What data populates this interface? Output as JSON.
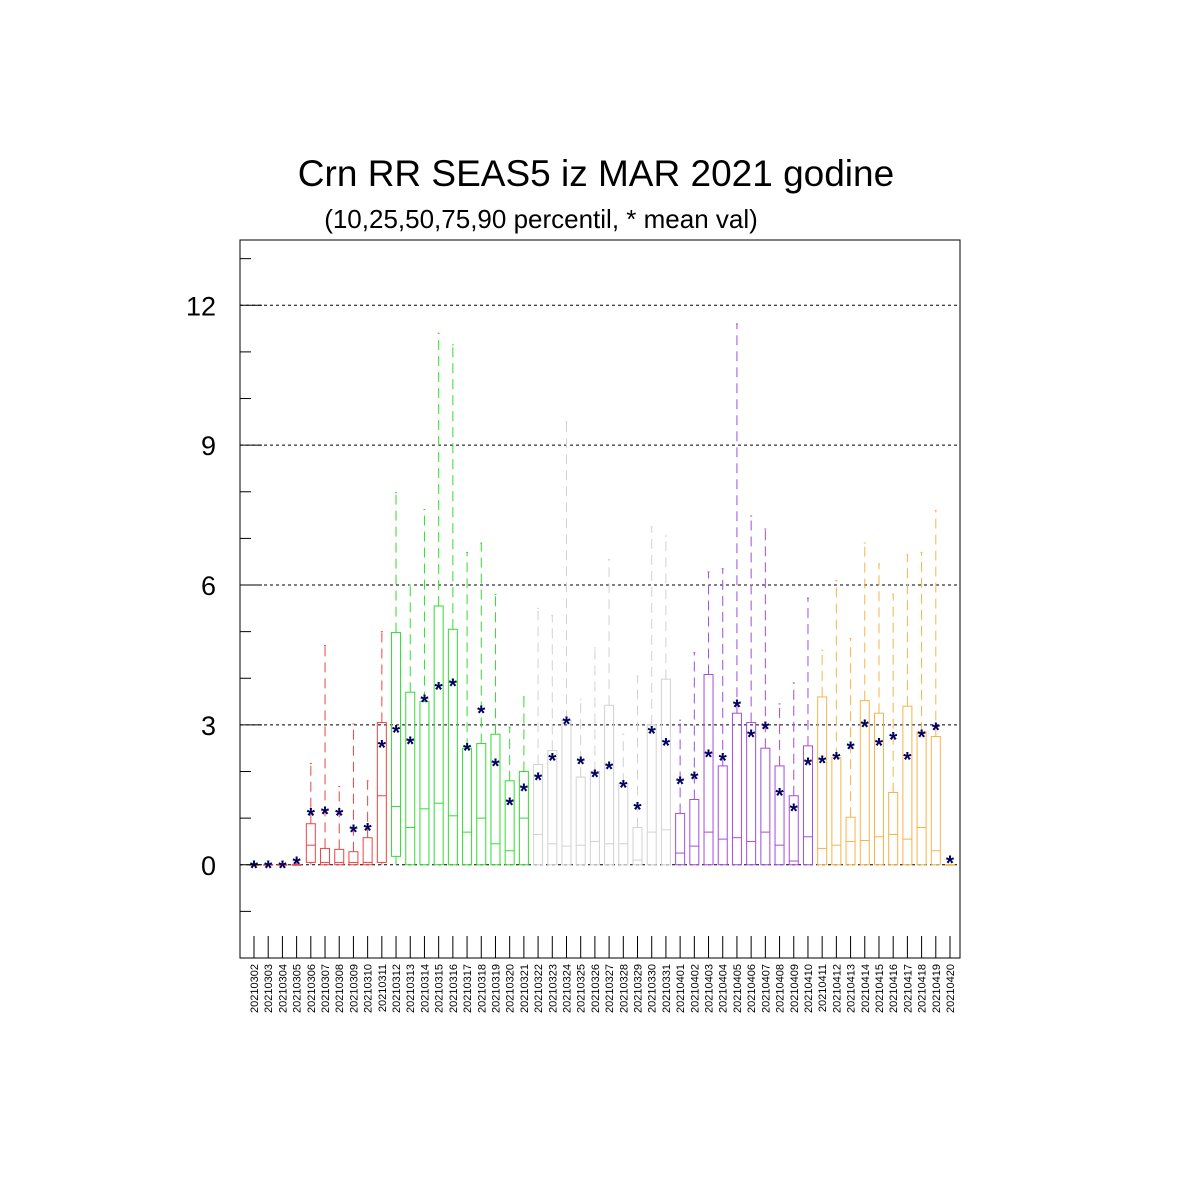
{
  "chart_data": {
    "type": "box",
    "title": "Crn RR SEAS5 iz MAR 2021 godine",
    "subtitle": "(10,25,50,75,90 percentil, * mean val)",
    "xlabel": "",
    "ylabel": "",
    "ylim": [
      -2,
      13.4
    ],
    "yticks": [
      0,
      3,
      6,
      9,
      12
    ],
    "grid": "horizontal dashed at major ticks",
    "mean_marker": "*",
    "colors": {
      "red": "#ee4444",
      "green": "#33dd33",
      "gray": "#d2d2d2",
      "purple": "#a64cdd",
      "orange": "#f8b347",
      "mean": "#000060"
    },
    "categories": [
      "20210302",
      "20210303",
      "20210304",
      "20210305",
      "20210306",
      "20210307",
      "20210308",
      "20210309",
      "20210310",
      "20210311",
      "20210312",
      "20210313",
      "20210314",
      "20210315",
      "20210316",
      "20210317",
      "20210318",
      "20210319",
      "20210320",
      "20210321",
      "20210322",
      "20210323",
      "20210324",
      "20210325",
      "20210326",
      "20210327",
      "20210328",
      "20210329",
      "20210330",
      "20210331",
      "20210401",
      "20210402",
      "20210403",
      "20210404",
      "20210405",
      "20210406",
      "20210407",
      "20210408",
      "20210409",
      "20210410",
      "20210411",
      "20210412",
      "20210413",
      "20210414",
      "20210415",
      "20210416",
      "20210417",
      "20210418",
      "20210419",
      "20210420"
    ],
    "boxes": [
      {
        "color": "red",
        "p10": 0,
        "p25": 0,
        "p50": 0,
        "p75": 0,
        "p90": 0,
        "mean": 0
      },
      {
        "color": "red",
        "p10": 0,
        "p25": 0,
        "p50": 0,
        "p75": 0,
        "p90": 0,
        "mean": 0
      },
      {
        "color": "red",
        "p10": 0,
        "p25": 0,
        "p50": 0,
        "p75": 0,
        "p90": 0,
        "mean": 0
      },
      {
        "color": "red",
        "p10": 0,
        "p25": 0,
        "p50": 0,
        "p75": 0,
        "p90": 0.1,
        "mean": 0.08
      },
      {
        "color": "red",
        "p10": 0,
        "p25": 0.05,
        "p50": 0.42,
        "p75": 0.88,
        "p90": 2.17,
        "mean": 1.12
      },
      {
        "color": "red",
        "p10": 0,
        "p25": 0,
        "p50": 0.05,
        "p75": 0.35,
        "p90": 4.7,
        "mean": 1.15
      },
      {
        "color": "red",
        "p10": 0,
        "p25": 0,
        "p50": 0.05,
        "p75": 0.33,
        "p90": 1.68,
        "mean": 1.12
      },
      {
        "color": "red",
        "p10": 0,
        "p25": 0,
        "p50": 0.05,
        "p75": 0.28,
        "p90": 3.02,
        "mean": 0.77
      },
      {
        "color": "red",
        "p10": 0,
        "p25": 0,
        "p50": 0.05,
        "p75": 0.58,
        "p90": 1.8,
        "mean": 0.8
      },
      {
        "color": "red",
        "p10": 0,
        "p25": 0.05,
        "p50": 1.48,
        "p75": 3.05,
        "p90": 5.0,
        "mean": 2.58
      },
      {
        "color": "green",
        "p10": 0,
        "p25": 0.18,
        "p50": 1.25,
        "p75": 4.98,
        "p90": 7.98,
        "mean": 2.9
      },
      {
        "color": "green",
        "p10": 0,
        "p25": 0,
        "p50": 0.8,
        "p75": 3.7,
        "p90": 6.0,
        "mean": 2.65
      },
      {
        "color": "green",
        "p10": 0,
        "p25": 0,
        "p50": 1.2,
        "p75": 3.5,
        "p90": 7.62,
        "mean": 3.55
      },
      {
        "color": "green",
        "p10": 0,
        "p25": 0,
        "p50": 1.32,
        "p75": 5.55,
        "p90": 11.4,
        "mean": 3.82
      },
      {
        "color": "green",
        "p10": 0,
        "p25": 0,
        "p50": 1.05,
        "p75": 5.05,
        "p90": 11.15,
        "mean": 3.9
      },
      {
        "color": "green",
        "p10": 0,
        "p25": 0,
        "p50": 0.7,
        "p75": 2.5,
        "p90": 6.7,
        "mean": 2.52
      },
      {
        "color": "green",
        "p10": 0,
        "p25": 0,
        "p50": 1.0,
        "p75": 2.6,
        "p90": 6.9,
        "mean": 3.32
      },
      {
        "color": "green",
        "p10": 0,
        "p25": 0,
        "p50": 0.45,
        "p75": 2.8,
        "p90": 5.8,
        "mean": 2.18
      },
      {
        "color": "green",
        "p10": 0,
        "p25": 0,
        "p50": 0.3,
        "p75": 1.8,
        "p90": 2.95,
        "mean": 1.35
      },
      {
        "color": "green",
        "p10": 0,
        "p25": 0,
        "p50": 1.0,
        "p75": 2.0,
        "p90": 3.6,
        "mean": 1.65
      },
      {
        "color": "gray",
        "p10": 0,
        "p25": 0,
        "p50": 0.65,
        "p75": 2.15,
        "p90": 5.5,
        "mean": 1.88
      },
      {
        "color": "gray",
        "p10": 0,
        "p25": 0,
        "p50": 0.45,
        "p75": 2.45,
        "p90": 5.35,
        "mean": 2.3
      },
      {
        "color": "gray",
        "p10": 0,
        "p25": 0,
        "p50": 0.4,
        "p75": 3.1,
        "p90": 9.5,
        "mean": 3.08
      },
      {
        "color": "gray",
        "p10": 0,
        "p25": 0,
        "p50": 0.42,
        "p75": 1.88,
        "p90": 3.55,
        "mean": 2.22
      },
      {
        "color": "gray",
        "p10": 0,
        "p25": 0,
        "p50": 0.5,
        "p75": 2.0,
        "p90": 4.65,
        "mean": 1.95
      },
      {
        "color": "gray",
        "p10": 0,
        "p25": 0,
        "p50": 0.45,
        "p75": 3.42,
        "p90": 6.55,
        "mean": 2.12
      },
      {
        "color": "gray",
        "p10": 0,
        "p25": 0,
        "p50": 0.45,
        "p75": 1.75,
        "p90": 2.8,
        "mean": 1.72
      },
      {
        "color": "gray",
        "p10": 0,
        "p25": 0,
        "p50": 0.1,
        "p75": 0.8,
        "p90": 4.05,
        "mean": 1.25
      },
      {
        "color": "gray",
        "p10": 0,
        "p25": 0,
        "p50": 0.7,
        "p75": 3.0,
        "p90": 7.25,
        "mean": 2.88
      },
      {
        "color": "gray",
        "p10": 0,
        "p25": 0,
        "p50": 0.75,
        "p75": 3.98,
        "p90": 7.05,
        "mean": 2.62
      },
      {
        "color": "purple",
        "p10": 0,
        "p25": 0,
        "p50": 0.25,
        "p75": 1.1,
        "p90": 3.1,
        "mean": 1.8
      },
      {
        "color": "purple",
        "p10": 0,
        "p25": 0,
        "p50": 0.4,
        "p75": 1.4,
        "p90": 4.55,
        "mean": 1.9
      },
      {
        "color": "purple",
        "p10": 0,
        "p25": 0,
        "p50": 0.7,
        "p75": 4.08,
        "p90": 6.28,
        "mean": 2.38
      },
      {
        "color": "purple",
        "p10": 0,
        "p25": 0,
        "p50": 0.55,
        "p75": 2.12,
        "p90": 6.35,
        "mean": 2.3
      },
      {
        "color": "purple",
        "p10": 0,
        "p25": 0,
        "p50": 0.58,
        "p75": 3.25,
        "p90": 11.6,
        "mean": 3.45
      },
      {
        "color": "purple",
        "p10": 0,
        "p25": 0,
        "p50": 0.5,
        "p75": 3.05,
        "p90": 7.48,
        "mean": 2.8
      },
      {
        "color": "purple",
        "p10": 0,
        "p25": 0,
        "p50": 0.7,
        "p75": 2.5,
        "p90": 7.2,
        "mean": 2.98
      },
      {
        "color": "purple",
        "p10": 0,
        "p25": 0,
        "p50": 0.42,
        "p75": 2.12,
        "p90": 3.45,
        "mean": 1.55
      },
      {
        "color": "purple",
        "p10": 0,
        "p25": 0,
        "p50": 0.08,
        "p75": 1.48,
        "p90": 3.9,
        "mean": 1.22
      },
      {
        "color": "purple",
        "p10": 0,
        "p25": 0,
        "p50": 0.6,
        "p75": 2.55,
        "p90": 5.72,
        "mean": 2.2
      },
      {
        "color": "orange",
        "p10": 0,
        "p25": 0,
        "p50": 0.35,
        "p75": 3.6,
        "p90": 4.6,
        "mean": 2.25
      },
      {
        "color": "orange",
        "p10": 0,
        "p25": 0,
        "p50": 0.42,
        "p75": 2.3,
        "p90": 6.1,
        "mean": 2.32
      },
      {
        "color": "orange",
        "p10": 0,
        "p25": 0,
        "p50": 0.5,
        "p75": 1.02,
        "p90": 4.85,
        "mean": 2.55
      },
      {
        "color": "orange",
        "p10": 0,
        "p25": 0,
        "p50": 0.52,
        "p75": 3.52,
        "p90": 6.9,
        "mean": 3.02
      },
      {
        "color": "orange",
        "p10": 0,
        "p25": 0,
        "p50": 0.6,
        "p75": 3.25,
        "p90": 6.45,
        "mean": 2.62
      },
      {
        "color": "orange",
        "p10": 0,
        "p25": 0,
        "p50": 0.65,
        "p75": 1.55,
        "p90": 5.8,
        "mean": 2.75
      },
      {
        "color": "orange",
        "p10": 0,
        "p25": 0,
        "p50": 0.55,
        "p75": 3.4,
        "p90": 6.65,
        "mean": 2.32
      },
      {
        "color": "orange",
        "p10": 0,
        "p25": 0,
        "p50": 0.8,
        "p75": 2.85,
        "p90": 6.7,
        "mean": 2.8
      },
      {
        "color": "orange",
        "p10": 0,
        "p25": 0,
        "p50": 0.3,
        "p75": 2.75,
        "p90": 7.6,
        "mean": 2.95
      },
      {
        "color": "orange",
        "p10": 0,
        "p25": 0,
        "p50": 0,
        "p75": 0,
        "p90": 0,
        "mean": 0.1
      }
    ]
  }
}
